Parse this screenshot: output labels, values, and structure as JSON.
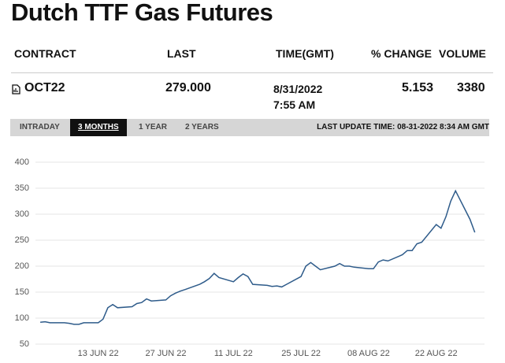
{
  "header": {
    "title": "Dutch TTF Gas Futures"
  },
  "table": {
    "columns": [
      "CONTRACT",
      "LAST",
      "TIME(GMT)",
      "% CHANGE",
      "VOLUME"
    ],
    "rows": [
      [
        "OCT22",
        "279.000",
        "8/31/2022 7:55 AM",
        "5.153",
        "3380"
      ]
    ]
  },
  "tabs": [
    "INTRADAY",
    "3 MONTHS",
    "1 YEAR",
    "2 YEARS"
  ],
  "last_update": "LAST UPDATE TIME: 08-31-2022 8:34 AM GMT",
  "chart_data": {
    "type": "line",
    "x": [
      "2022-06-01",
      "2022-06-02",
      "2022-06-03",
      "2022-06-06",
      "2022-06-07",
      "2022-06-08",
      "2022-06-09",
      "2022-06-10",
      "2022-06-13",
      "2022-06-14",
      "2022-06-15",
      "2022-06-16",
      "2022-06-17",
      "2022-06-20",
      "2022-06-21",
      "2022-06-22",
      "2022-06-23",
      "2022-06-24",
      "2022-06-27",
      "2022-06-28",
      "2022-06-29",
      "2022-06-30",
      "2022-07-01",
      "2022-07-04",
      "2022-07-05",
      "2022-07-06",
      "2022-07-07",
      "2022-07-08",
      "2022-07-11",
      "2022-07-12",
      "2022-07-13",
      "2022-07-14",
      "2022-07-15",
      "2022-07-18",
      "2022-07-19",
      "2022-07-20",
      "2022-07-21",
      "2022-07-22",
      "2022-07-25",
      "2022-07-26",
      "2022-07-27",
      "2022-07-28",
      "2022-07-29",
      "2022-08-01",
      "2022-08-02",
      "2022-08-03",
      "2022-08-04",
      "2022-08-05",
      "2022-08-08",
      "2022-08-09",
      "2022-08-10",
      "2022-08-11",
      "2022-08-12",
      "2022-08-15",
      "2022-08-16",
      "2022-08-17",
      "2022-08-18",
      "2022-08-19",
      "2022-08-22",
      "2022-08-23",
      "2022-08-24",
      "2022-08-25",
      "2022-08-26",
      "2022-08-29",
      "2022-08-30"
    ],
    "values": [
      92,
      93,
      91,
      91,
      90,
      88,
      88,
      91,
      91,
      98,
      120,
      126,
      120,
      122,
      128,
      130,
      137,
      133,
      135,
      143,
      148,
      152,
      155,
      165,
      170,
      176,
      186,
      178,
      170,
      178,
      185,
      180,
      165,
      163,
      161,
      162,
      160,
      165,
      180,
      200,
      207,
      200,
      193,
      200,
      205,
      200,
      200,
      198,
      195,
      195,
      208,
      212,
      210,
      222,
      230,
      230,
      243,
      246,
      280,
      273,
      295,
      325,
      345,
      290,
      265
    ],
    "color": "#2e5b8a",
    "xlim": [
      "2022-05-31",
      "2022-09-01"
    ],
    "xticks": [
      {
        "value": "2022-06-13",
        "label": "13 JUN 22"
      },
      {
        "value": "2022-06-27",
        "label": "27 JUN 22"
      },
      {
        "value": "2022-07-11",
        "label": "11 JUL 22"
      },
      {
        "value": "2022-07-25",
        "label": "25 JUL 22"
      },
      {
        "value": "2022-08-08",
        "label": "08 AUG 22"
      },
      {
        "value": "2022-08-22",
        "label": "22 AUG 22"
      }
    ],
    "ylim": [
      50,
      400
    ],
    "yticks": [
      50,
      100,
      150,
      200,
      250,
      300,
      350,
      400
    ],
    "grid": true
  }
}
